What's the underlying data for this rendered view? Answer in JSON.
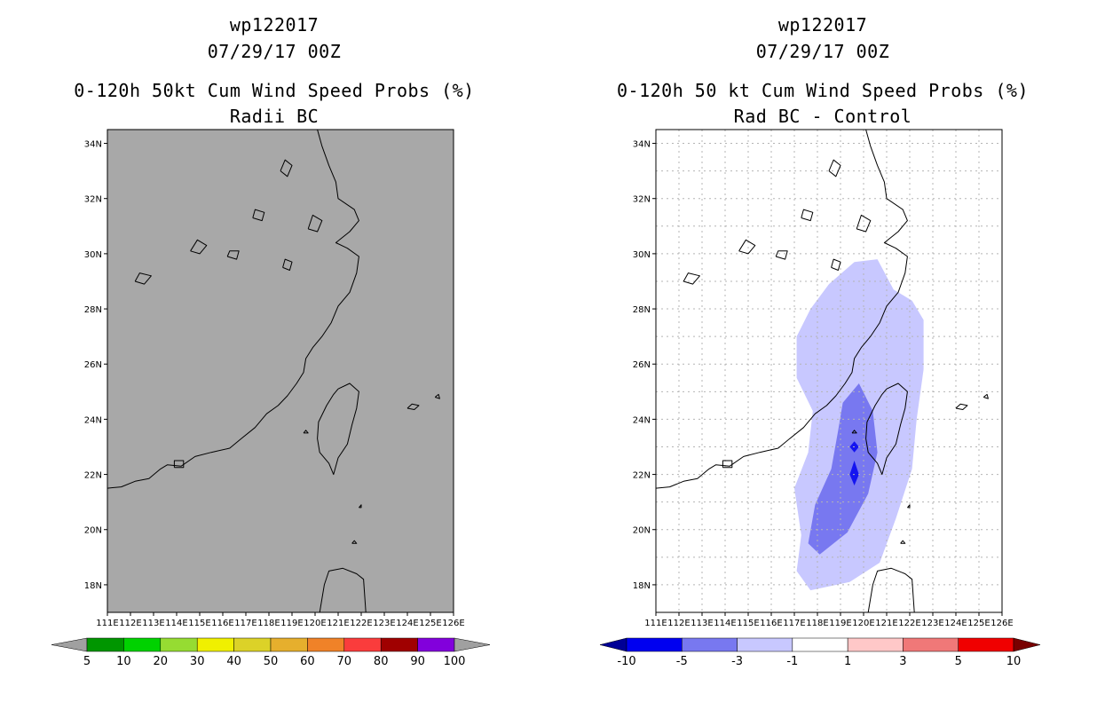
{
  "colors": {
    "land_gray": "#a8a8a8",
    "coast": "#000000",
    "grid": "#b4b4b4",
    "diff_light": "#c8c8ff",
    "diff_mid": "#7878f0",
    "diff_dark": "#1414f0"
  },
  "panels": [
    {
      "storm_id": "wp122017",
      "datetime": "07/29/17 00Z",
      "title_line1": "0-120h 50kt Cum Wind Speed Probs (%)",
      "title_line2": "Radii BC",
      "field": "probability",
      "colorbar": {
        "labels": [
          "5",
          "10",
          "20",
          "30",
          "40",
          "50",
          "60",
          "70",
          "80",
          "90",
          "100"
        ],
        "colors": [
          "#009600",
          "#00d200",
          "#96dc32",
          "#f0f000",
          "#dcd228",
          "#e6af2d",
          "#f08228",
          "#fa3c3c",
          "#a00000",
          "#8200dc"
        ],
        "under_color": "#a0a0a0",
        "over_color": "#a0a0a0"
      }
    },
    {
      "storm_id": "wp122017",
      "datetime": "07/29/17 00Z",
      "title_line1": "0-120h 50 kt Cum Wind Speed Probs (%)",
      "title_line2": "Rad BC - Control",
      "field": "difference",
      "colorbar": {
        "labels": [
          "-10",
          "-5",
          "-3",
          "-1",
          "1",
          "3",
          "5",
          "10"
        ],
        "colors": [
          "#0000f0",
          "#7878f0",
          "#c8c8ff",
          "#ffffff",
          "#ffc8c8",
          "#f07878",
          "#f00000"
        ],
        "under_color": "#000096",
        "over_color": "#780000"
      }
    }
  ],
  "map": {
    "lon_range": [
      111,
      126
    ],
    "lat_range": [
      17,
      34.5
    ],
    "lon_ticks": [
      "111E",
      "112E",
      "113E",
      "114E",
      "115E",
      "116E",
      "117E",
      "118E",
      "119E",
      "120E",
      "121E",
      "122E",
      "123E",
      "124E",
      "125E",
      "126E"
    ],
    "lat_ticks": [
      "18N",
      "20N",
      "22N",
      "24N",
      "26N",
      "28N",
      "30N",
      "32N",
      "34N"
    ]
  }
}
